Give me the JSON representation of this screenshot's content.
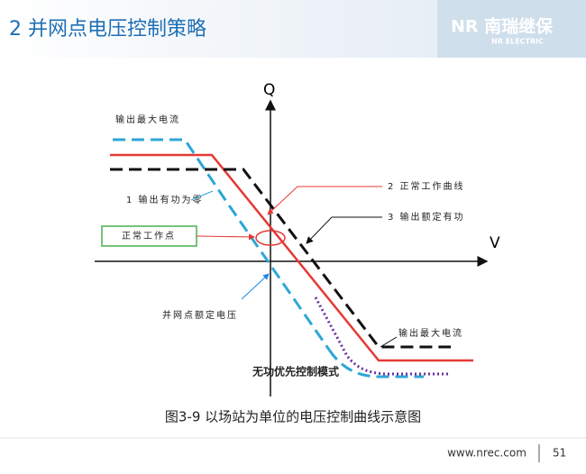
{
  "header": {
    "title": "2 并网点电压控制策略",
    "logo": "NR 南瑞继保",
    "logo_sub": "NR ELECTRIC"
  },
  "diagram": {
    "y_axis": "Q",
    "x_axis": "V",
    "labels": {
      "max_current_top": "输出最大电流",
      "zero_active": "1 输出有功为零",
      "operating_point": "正常工作点",
      "normal_curve": "2 正常工作曲线",
      "rated_active": "3 输出额定有功",
      "rated_voltage": "并网点额定电压",
      "max_current_bottom": "输出最大电流",
      "reactive_priority": "无功优先控制模式"
    },
    "caption": "图3-9 以场站为单位的电压控制曲线示意图"
  },
  "footer": {
    "url": "www.nrec.com",
    "page": "51"
  }
}
